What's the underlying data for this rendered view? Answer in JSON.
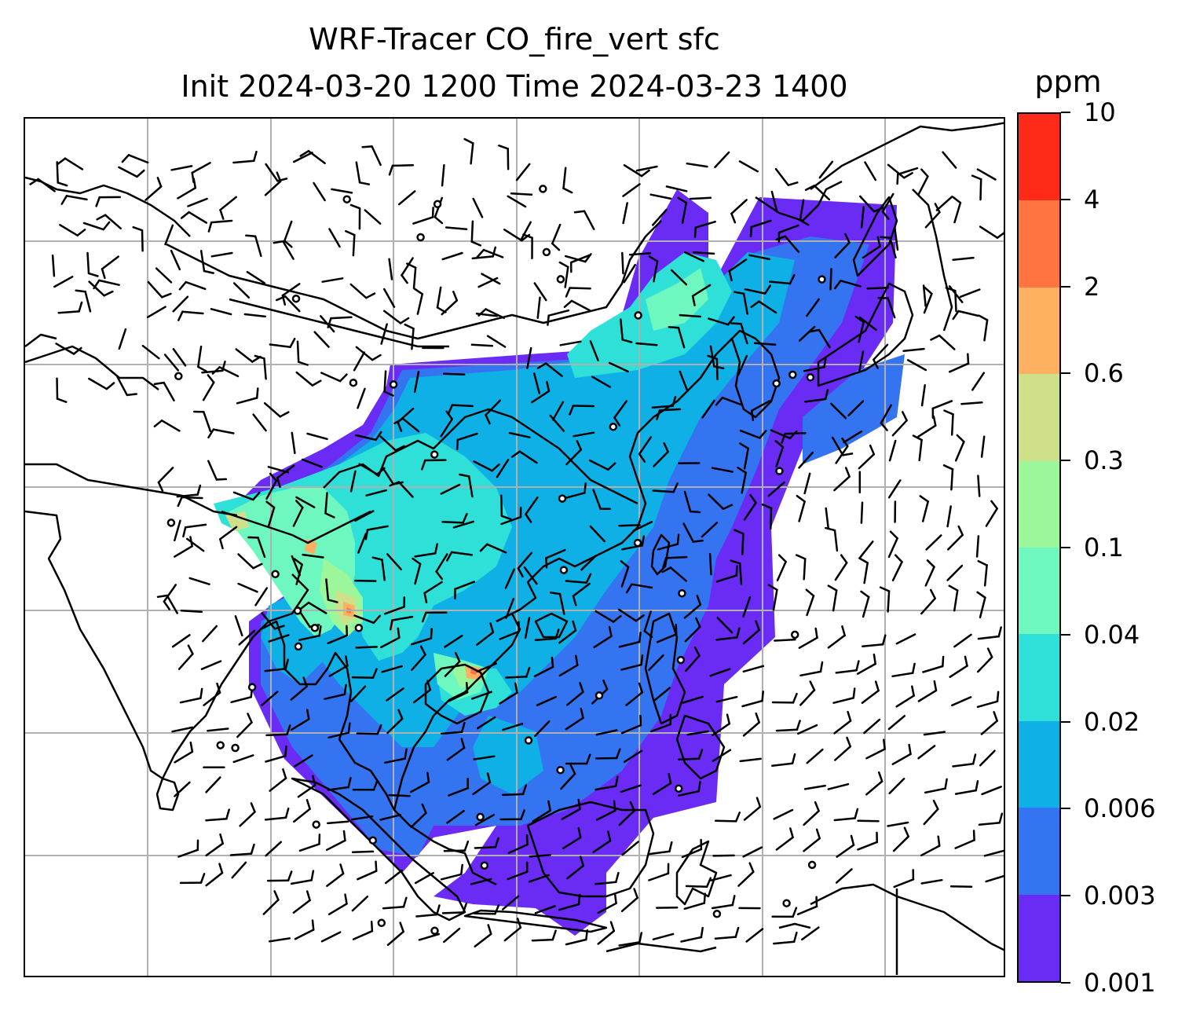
{
  "title": {
    "line1": "WRF-Tracer CO_fire_vert sfc",
    "line2": "Init 2024-03-20 1200 Time 2024-03-23 1400"
  },
  "colorbar": {
    "unit": "ppm",
    "levels": [
      "0.001",
      "0.003",
      "0.006",
      "0.02",
      "0.04",
      "0.1",
      "0.3",
      "0.6",
      "2",
      "4",
      "10"
    ],
    "colors": [
      "#6a2bf5",
      "#3574f0",
      "#0fb0e6",
      "#2ee0d8",
      "#6ef7bf",
      "#9cf79b",
      "#cfe08a",
      "#fdb060",
      "#ff7440",
      "#ff2a17"
    ]
  },
  "map": {
    "gridlines": "on",
    "coastline_color": "#000000",
    "gridline_color": "#b0b0b0",
    "wind_barb_color": "#000000",
    "station_marker": "open-circle"
  }
}
